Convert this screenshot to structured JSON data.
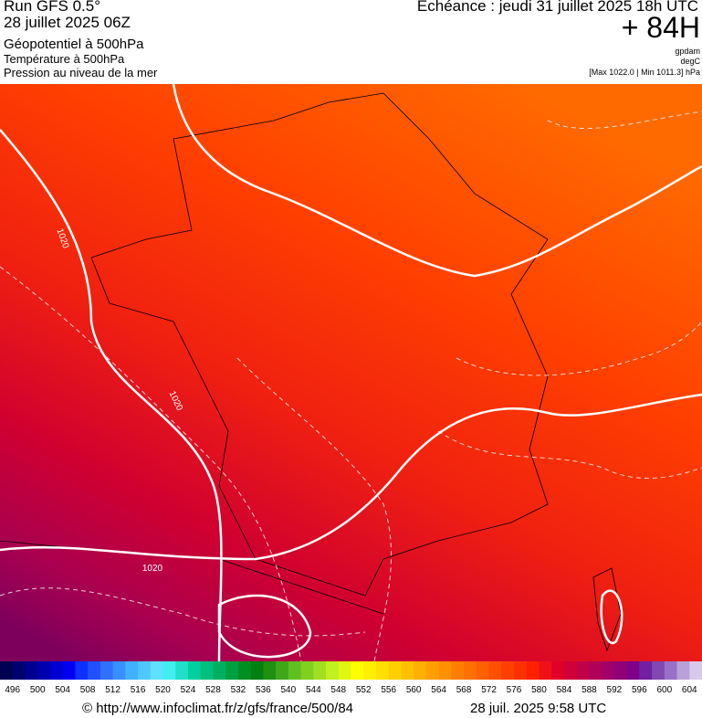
{
  "header": {
    "run": "Run GFS 0.5°",
    "run_date": "28 juillet 2025 06Z",
    "fields": [
      "Géopotentiel à 500hPa",
      "Température à 500hPa",
      "Pression au niveau de la mer"
    ],
    "echeance": "Echéance : jeudi 31 juillet 2025 18h UTC",
    "lead": "+ 84H",
    "units": [
      "gpdam",
      "degC",
      "[Max 1022.0 | Min 1011.3] hPa"
    ]
  },
  "map": {
    "isobar_labels": [
      "1020",
      "1020",
      "1020"
    ]
  },
  "legend": {
    "labels": [
      496,
      500,
      504,
      508,
      512,
      516,
      520,
      524,
      528,
      532,
      536,
      540,
      544,
      548,
      552,
      556,
      560,
      564,
      568,
      572,
      576,
      580,
      584,
      588,
      592,
      596,
      600,
      604
    ],
    "colors": [
      "#000050",
      "#000070",
      "#000090",
      "#0000b0",
      "#0000d0",
      "#0000f0",
      "#1030ff",
      "#2050ff",
      "#3070ff",
      "#3890ff",
      "#40b0ff",
      "#50c8ff",
      "#60e0ff",
      "#40f0f0",
      "#20e0c8",
      "#00d0a0",
      "#00c080",
      "#00b060",
      "#00a040",
      "#009020",
      "#008010",
      "#209010",
      "#40a818",
      "#60c020",
      "#80d020",
      "#a0e020",
      "#c0f020",
      "#e0f810",
      "#ffff00",
      "#fff000",
      "#ffe000",
      "#ffd000",
      "#ffc000",
      "#ffb000",
      "#ffa000",
      "#ff9000",
      "#ff8000",
      "#ff7000",
      "#ff6000",
      "#ff5000",
      "#ff4000",
      "#ff3000",
      "#ff2000",
      "#f01018",
      "#e00028",
      "#d00038",
      "#c00048",
      "#b00058",
      "#a00068",
      "#900078",
      "#800088",
      "#7020a0",
      "#8048b0",
      "#9870c8",
      "#b8a0d8",
      "#d8c8ec"
    ]
  },
  "footer": {
    "source": "© http://www.infoclimat.fr/z/gfs/france/500/84",
    "timestamp": "28 juil. 2025  9:58 UTC"
  }
}
